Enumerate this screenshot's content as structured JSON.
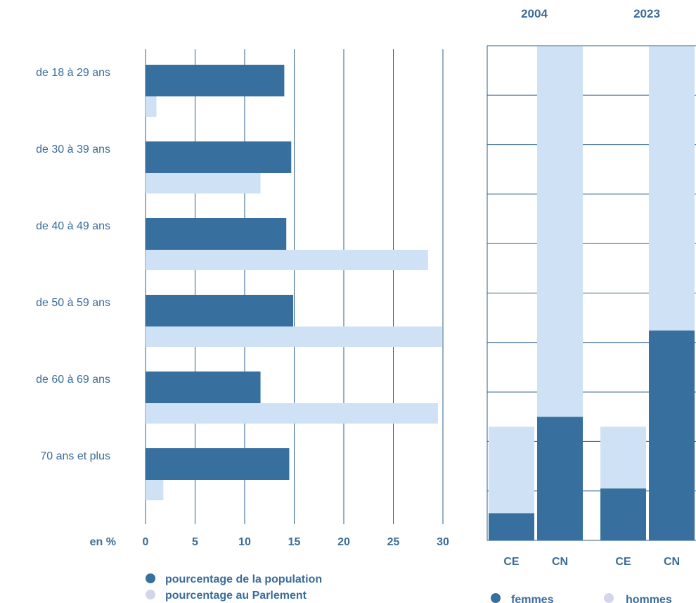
{
  "colors": {
    "dark": "#37709f",
    "light": "#cfe2f5",
    "grid": "#2d5f8a",
    "text": "#3a6c9a",
    "legend_light": "#d2d6e8"
  },
  "chart_data": [
    {
      "type": "bar",
      "orientation": "horizontal",
      "categories": [
        "de 18 à 29 ans",
        "de 30 à 39 ans",
        "de 40 à 49 ans",
        "de 50 à 59 ans",
        "de 60 à 69 ans",
        "70 ans et plus"
      ],
      "series": [
        {
          "name": "pourcentage de la population",
          "values": [
            14.0,
            14.7,
            14.2,
            14.9,
            11.6,
            14.5
          ]
        },
        {
          "name": "pourcentage au Parlement",
          "values": [
            1.1,
            11.6,
            28.5,
            29.9,
            29.5,
            1.8
          ]
        }
      ],
      "xlabel": "en %",
      "xlim": [
        0,
        30
      ],
      "xticks": [
        "0",
        "5",
        "10",
        "15",
        "20",
        "25",
        "30"
      ],
      "grid": "vertical",
      "legend": "bottom"
    },
    {
      "type": "bar",
      "stacked": true,
      "groups": [
        "2004",
        "2023"
      ],
      "categories": [
        "CE",
        "CN",
        "CE",
        "CN"
      ],
      "series": [
        {
          "name": "femmes",
          "values": [
            11,
            50,
            21,
            85
          ]
        },
        {
          "name": "hommes",
          "values": [
            35,
            150,
            25,
            115
          ]
        }
      ],
      "grid": "horizontal",
      "legend": "bottom"
    }
  ],
  "legend_left": {
    "population": "pourcentage de la population",
    "parliament": "pourcentage au Parlement"
  },
  "legend_right": {
    "women": "femmes",
    "men": "hommes"
  }
}
